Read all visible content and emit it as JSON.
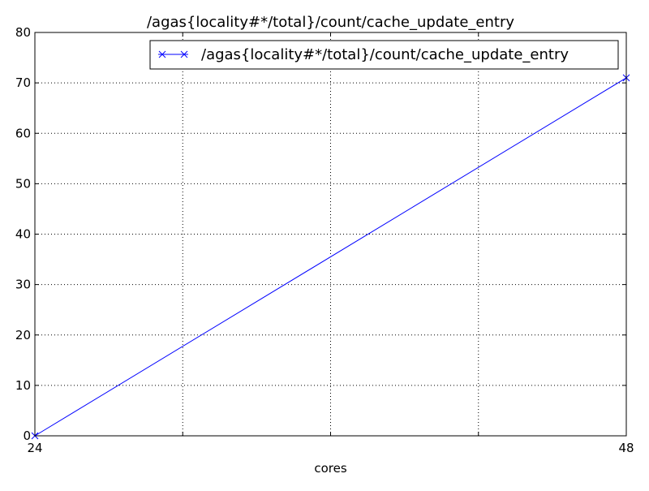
{
  "chart_data": {
    "type": "line",
    "title": "/agas{locality#*/total}/count/cache_update_entry",
    "xlabel": "cores",
    "ylabel": "",
    "xlim": [
      24,
      48
    ],
    "ylim": [
      0,
      80
    ],
    "x_tick_labels": [
      {
        "value": 24,
        "label": "24"
      },
      {
        "value": 48,
        "label": "48"
      }
    ],
    "x_grid_values": [
      24,
      30,
      36,
      42,
      48
    ],
    "y_ticks": [
      0,
      10,
      20,
      30,
      40,
      50,
      60,
      70,
      80
    ],
    "grid": true,
    "legend_position": "top-right",
    "series": [
      {
        "name": "/agas{locality#*/total}/count/cache_update_entry",
        "color": "#0000ff",
        "marker": "x",
        "x": [
          24,
          48
        ],
        "y": [
          0,
          71
        ]
      }
    ]
  }
}
